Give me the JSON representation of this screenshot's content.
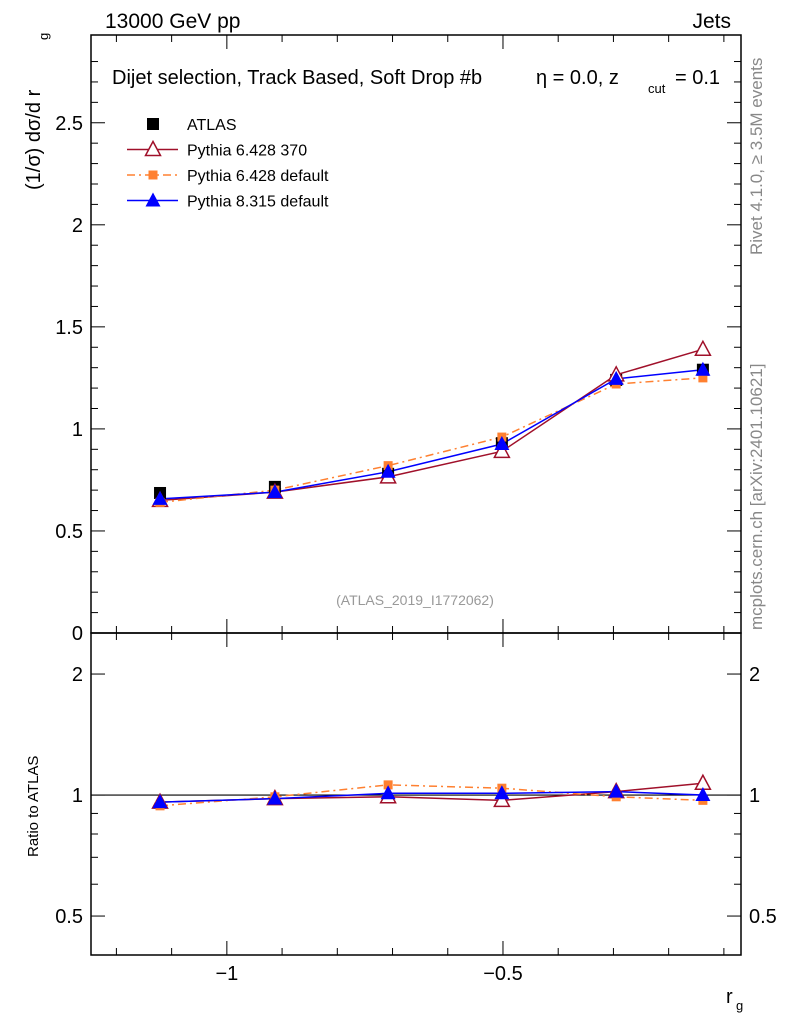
{
  "header": {
    "left": "13000 GeV pp",
    "right": "Jets"
  },
  "side_labels": {
    "rivet": "Rivet 4.1.0, ≥ 3.5M events",
    "mcplots": "mcplots.cern.ch [arXiv:2401.10621]"
  },
  "chart_data": {
    "type": "line",
    "title_main": "Dijet selection, Track Based, Soft Drop #b",
    "title_rest": "η = 0.0, z",
    "title_sub": "cut",
    "title_end": " = 0.1",
    "analysis_id": "(ATLAS_2019_I1772062)",
    "ylabel": "(1/σ) dσ/d r",
    "ylabel_sub": "g",
    "ratio_ylabel": "Ratio to ATLAS",
    "xlabel": "r",
    "xlabel_sub": "g",
    "xlim": [
      -1.246,
      -0.069
    ],
    "ylim": [
      0,
      2.93
    ],
    "ratio_ylim": [
      0.4,
      2.53
    ],
    "ratio_log": true,
    "x_ticks": [
      {
        "v": -1,
        "label": "−1"
      },
      {
        "v": -0.5,
        "label": "−0.5"
      }
    ],
    "y_ticks": [
      {
        "v": 0,
        "label": "0"
      },
      {
        "v": 0.5,
        "label": "0.5"
      },
      {
        "v": 1,
        "label": "1"
      },
      {
        "v": 1.5,
        "label": "1.5"
      },
      {
        "v": 2,
        "label": "2"
      },
      {
        "v": 2.5,
        "label": "2.5"
      }
    ],
    "ratio_ticks": [
      {
        "v": 0.5,
        "label": "0.5"
      },
      {
        "v": 1,
        "label": "1"
      },
      {
        "v": 2,
        "label": "2"
      }
    ],
    "x": [
      -1.121,
      -0.913,
      -0.708,
      -0.502,
      -0.295,
      -0.138
    ],
    "series": [
      {
        "name": "ATLAS",
        "color": "#000000",
        "marker": "square",
        "line": "none",
        "values": [
          0.686,
          0.716,
          0.78,
          0.93,
          1.24,
          1.29
        ],
        "ratio": [
          1,
          1,
          1,
          1,
          1,
          1
        ]
      },
      {
        "name": "Pythia 6.428 370",
        "color": "#a0102a",
        "marker": "open-triangle",
        "line": "solid",
        "values": [
          0.65,
          0.69,
          0.765,
          0.89,
          1.265,
          1.39
        ],
        "ratio": [
          0.96,
          0.98,
          0.99,
          0.97,
          1.02,
          1.07
        ]
      },
      {
        "name": "Pythia 6.428 default",
        "color": "#ff8030",
        "marker": "small-square",
        "line": "dashdot",
        "values": [
          0.64,
          0.7,
          0.82,
          0.96,
          1.22,
          1.25
        ],
        "ratio": [
          0.94,
          0.99,
          1.06,
          1.04,
          0.99,
          0.97
        ]
      },
      {
        "name": "Pythia 8.315 default",
        "color": "#0000ff",
        "marker": "triangle",
        "line": "solid",
        "values": [
          0.657,
          0.69,
          0.79,
          0.926,
          1.245,
          1.29
        ],
        "ratio": [
          0.96,
          0.98,
          1.01,
          1.01,
          1.02,
          1.0
        ]
      }
    ]
  }
}
